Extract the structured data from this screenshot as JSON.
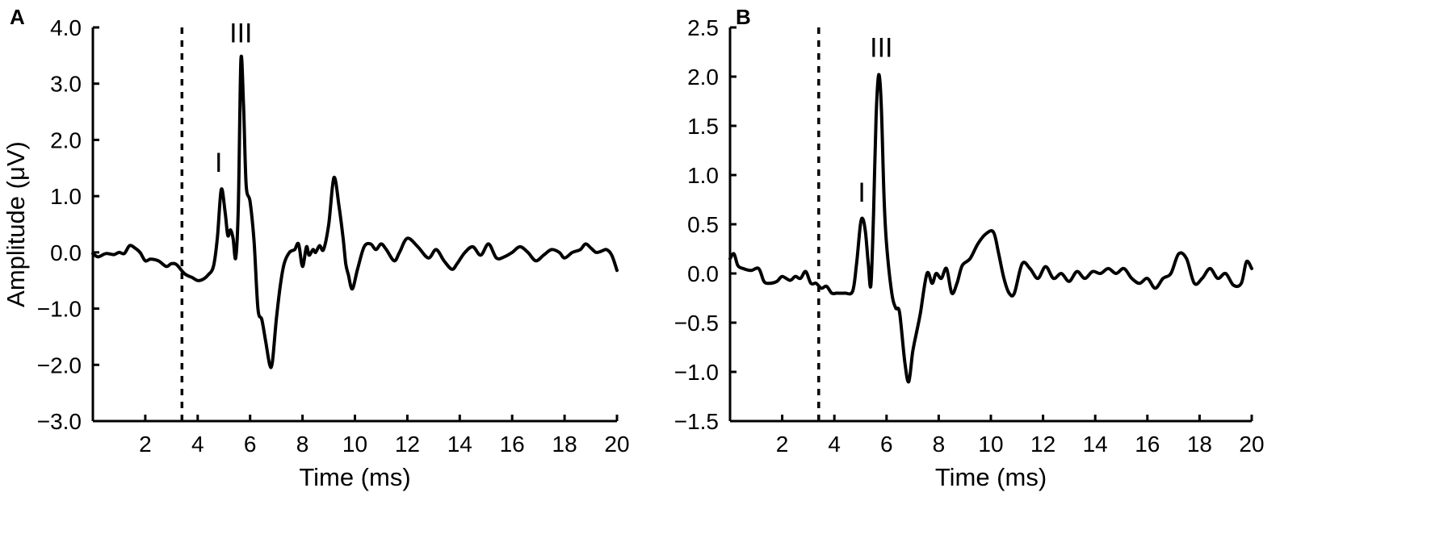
{
  "chart_data": [
    {
      "type": "line",
      "panel_label": "A",
      "xlabel": "Time (ms)",
      "ylabel": "Amplitude (μV)",
      "xlim": [
        0,
        20
      ],
      "ylim": [
        -3.0,
        4.0
      ],
      "x_ticks": [
        2,
        4,
        6,
        8,
        10,
        12,
        14,
        16,
        18,
        20
      ],
      "x_tick_labels": [
        "2",
        "4",
        "6",
        "8",
        "10",
        "12",
        "14",
        "16",
        "18",
        "20"
      ],
      "y_ticks": [
        -3.0,
        -2.0,
        -1.0,
        0.0,
        1.0,
        2.0,
        3.0,
        4.0
      ],
      "y_tick_labels": [
        "−3.0",
        "−2.0",
        "−1.0",
        "0.0",
        "1.0",
        "2.0",
        "3.0",
        "4.0"
      ],
      "stimulus_marker_x": 3.4,
      "annotations": [
        {
          "text": "I",
          "x": 4.8,
          "y": 1.12
        },
        {
          "text": "III",
          "x": 5.65,
          "y": 3.42
        }
      ],
      "series": [
        {
          "x": [
            0.0,
            0.2,
            0.5,
            0.8,
            1.0,
            1.2,
            1.4,
            1.6,
            1.8,
            2.0,
            2.2,
            2.5,
            2.8,
            3.0,
            3.2,
            3.5,
            3.8,
            4.0,
            4.2,
            4.4,
            4.6,
            4.75,
            4.9,
            5.05,
            5.15,
            5.25,
            5.35,
            5.45,
            5.55,
            5.65,
            5.75,
            5.85,
            6.0,
            6.15,
            6.3,
            6.45,
            6.6,
            6.75,
            6.85,
            7.0,
            7.15,
            7.3,
            7.5,
            7.7,
            7.85,
            8.0,
            8.15,
            8.25,
            8.4,
            8.5,
            8.65,
            8.8,
            9.0,
            9.2,
            9.4,
            9.55,
            9.65,
            9.75,
            9.9,
            10.1,
            10.35,
            10.6,
            10.8,
            11.0,
            11.2,
            11.5,
            11.7,
            12.0,
            12.4,
            12.8,
            13.1,
            13.4,
            13.7,
            13.9,
            14.2,
            14.5,
            14.8,
            15.1,
            15.4,
            15.7,
            16.0,
            16.3,
            16.6,
            16.9,
            17.2,
            17.5,
            17.8,
            18.0,
            18.3,
            18.6,
            18.8,
            19.0,
            19.2,
            19.4,
            19.6,
            19.8,
            20.0
          ],
          "y": [
            -0.02,
            -0.08,
            -0.02,
            -0.04,
            0.0,
            -0.02,
            0.12,
            0.08,
            0.0,
            -0.15,
            -0.12,
            -0.15,
            -0.25,
            -0.2,
            -0.22,
            -0.38,
            -0.45,
            -0.5,
            -0.48,
            -0.4,
            -0.25,
            0.25,
            1.12,
            0.7,
            0.3,
            0.4,
            0.25,
            -0.1,
            0.8,
            3.42,
            2.6,
            1.2,
            0.9,
            0.2,
            -1.0,
            -1.2,
            -1.6,
            -2.0,
            -1.95,
            -1.2,
            -0.6,
            -0.2,
            0.0,
            0.05,
            0.15,
            -0.25,
            0.1,
            -0.05,
            0.05,
            0.0,
            0.12,
            0.05,
            0.5,
            1.33,
            0.8,
            0.25,
            -0.2,
            -0.4,
            -0.65,
            -0.3,
            0.1,
            0.15,
            0.05,
            0.15,
            0.05,
            -0.15,
            0.0,
            0.25,
            0.1,
            -0.1,
            0.05,
            -0.15,
            -0.3,
            -0.2,
            0.0,
            0.1,
            -0.05,
            0.15,
            -0.1,
            -0.08,
            0.0,
            0.1,
            0.0,
            -0.15,
            -0.05,
            0.05,
            0.0,
            -0.1,
            0.0,
            0.05,
            0.15,
            0.08,
            0.0,
            0.02,
            0.05,
            -0.05,
            -0.32
          ]
        }
      ]
    },
    {
      "type": "line",
      "panel_label": "B",
      "xlabel": "Time (ms)",
      "ylabel": "",
      "xlim": [
        0,
        20
      ],
      "ylim": [
        -1.5,
        2.5
      ],
      "x_ticks": [
        2,
        4,
        6,
        8,
        10,
        12,
        14,
        16,
        18,
        20
      ],
      "x_tick_labels": [
        "2",
        "4",
        "6",
        "8",
        "10",
        "12",
        "14",
        "16",
        "18",
        "20"
      ],
      "y_ticks": [
        -1.5,
        -1.0,
        -0.5,
        0.0,
        0.5,
        1.0,
        1.5,
        2.0,
        2.5
      ],
      "y_tick_labels": [
        "−1.5",
        "−1.0",
        "−0.5",
        "0.0",
        "0.5",
        "1.0",
        "1.5",
        "2.0",
        "2.5"
      ],
      "stimulus_marker_x": 3.4,
      "annotations": [
        {
          "text": "I",
          "x": 5.05,
          "y": 0.55
        },
        {
          "text": "III",
          "x": 5.8,
          "y": 2.02
        }
      ],
      "series": [
        {
          "x": [
            0.0,
            0.15,
            0.3,
            0.5,
            0.8,
            1.1,
            1.3,
            1.5,
            1.8,
            2.0,
            2.3,
            2.5,
            2.7,
            2.9,
            3.1,
            3.3,
            3.5,
            3.7,
            3.9,
            4.1,
            4.4,
            4.7,
            4.85,
            5.0,
            5.1,
            5.2,
            5.3,
            5.4,
            5.5,
            5.6,
            5.7,
            5.8,
            5.9,
            6.0,
            6.2,
            6.35,
            6.5,
            6.7,
            6.85,
            7.0,
            7.15,
            7.3,
            7.55,
            7.75,
            7.9,
            8.1,
            8.3,
            8.5,
            8.7,
            8.9,
            9.2,
            9.5,
            9.8,
            10.1,
            10.3,
            10.5,
            10.7,
            10.9,
            11.2,
            11.5,
            11.8,
            12.1,
            12.4,
            12.7,
            13.0,
            13.3,
            13.6,
            13.9,
            14.2,
            14.5,
            14.8,
            15.1,
            15.4,
            15.7,
            16.0,
            16.3,
            16.6,
            16.9,
            17.2,
            17.5,
            17.8,
            18.1,
            18.4,
            18.7,
            19.0,
            19.3,
            19.6,
            19.8,
            20.0
          ],
          "y": [
            0.15,
            0.2,
            0.08,
            0.05,
            0.03,
            0.05,
            -0.08,
            -0.1,
            -0.08,
            -0.03,
            -0.07,
            -0.03,
            -0.05,
            0.02,
            -0.1,
            -0.1,
            -0.15,
            -0.13,
            -0.2,
            -0.2,
            -0.2,
            -0.18,
            0.1,
            0.5,
            0.55,
            0.4,
            0.1,
            -0.12,
            0.6,
            1.6,
            2.02,
            1.7,
            0.8,
            0.3,
            -0.2,
            -0.35,
            -0.4,
            -0.9,
            -1.1,
            -0.8,
            -0.6,
            -0.4,
            0.0,
            -0.1,
            0.0,
            -0.05,
            0.05,
            -0.2,
            -0.1,
            0.08,
            0.15,
            0.3,
            0.4,
            0.42,
            0.2,
            -0.05,
            -0.2,
            -0.2,
            0.1,
            0.05,
            -0.05,
            0.07,
            -0.05,
            0.0,
            -0.08,
            0.02,
            -0.05,
            0.02,
            0.0,
            0.05,
            0.0,
            0.05,
            -0.05,
            -0.1,
            -0.05,
            -0.15,
            -0.05,
            0.0,
            0.2,
            0.15,
            -0.1,
            -0.05,
            0.05,
            -0.05,
            0.0,
            -0.12,
            -0.1,
            0.12,
            0.05
          ]
        }
      ]
    }
  ]
}
